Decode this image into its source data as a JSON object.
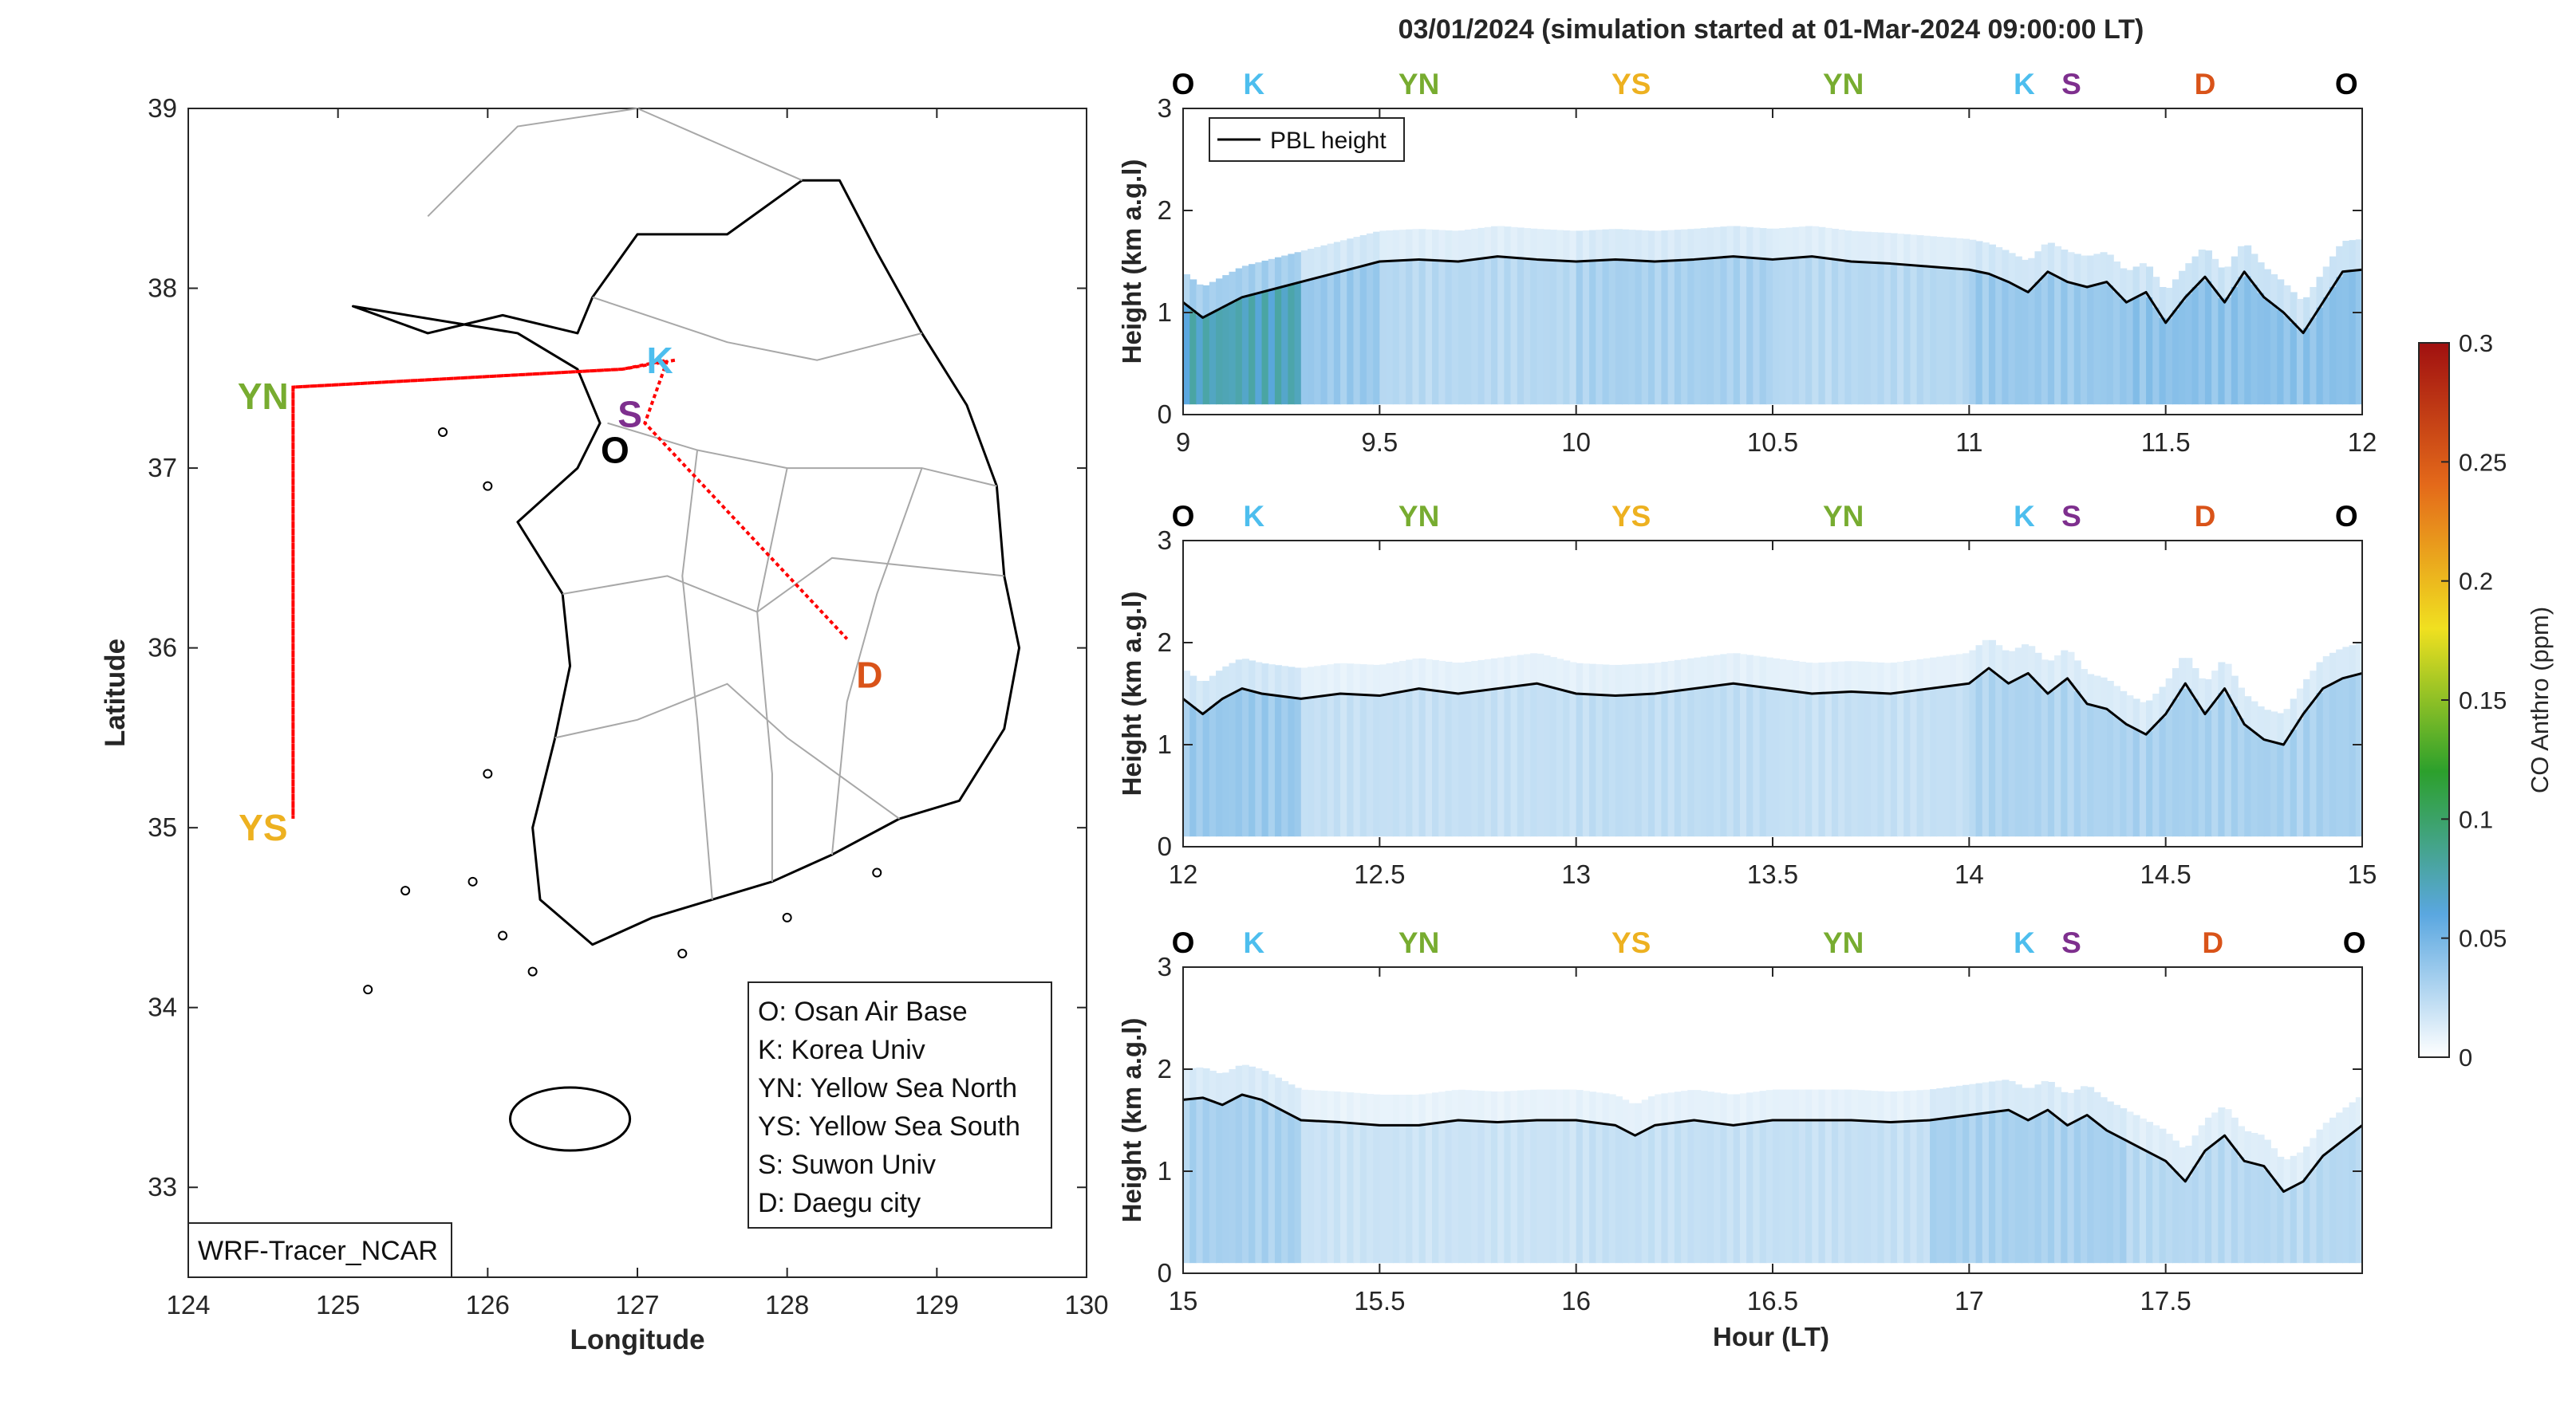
{
  "figure": {
    "title": "03/01/2024 (simulation started at 01-Mar-2024 09:00:00 LT)",
    "watermark": "WRF-Tracer_NCAR"
  },
  "map": {
    "xlabel": "Longitude",
    "ylabel": "Latitude",
    "xlim": [
      124,
      130
    ],
    "ylim": [
      32.5,
      39
    ],
    "xticks": [
      "124",
      "125",
      "126",
      "127",
      "128",
      "129",
      "130"
    ],
    "yticks": [
      "33",
      "34",
      "35",
      "36",
      "37",
      "38",
      "39"
    ],
    "sites": [
      {
        "code": "K",
        "lon": 127.15,
        "lat": 37.6,
        "color": "#4DBEEE"
      },
      {
        "code": "S",
        "lon": 126.95,
        "lat": 37.3,
        "color": "#7E2F8E"
      },
      {
        "code": "O",
        "lon": 126.85,
        "lat": 37.1,
        "color": "#000000"
      },
      {
        "code": "YN",
        "lon": 124.5,
        "lat": 37.4,
        "color": "#77AC30"
      },
      {
        "code": "YS",
        "lon": 124.5,
        "lat": 35.0,
        "color": "#EDB120"
      },
      {
        "code": "D",
        "lon": 128.55,
        "lat": 35.85,
        "color": "#D95319"
      }
    ],
    "legend": [
      "O: Osan Air Base",
      "K: Korea Univ",
      "YN: Yellow Sea North",
      "YS: Yellow Sea South",
      "S: Suwon Univ",
      "D: Daegu city"
    ],
    "track_color": "#ff0000",
    "track": [
      [
        127.25,
        37.6
      ],
      [
        126.9,
        37.55
      ],
      [
        124.7,
        37.45
      ],
      [
        124.7,
        35.05
      ],
      [
        124.7,
        37.45
      ],
      [
        126.9,
        37.55
      ],
      [
        127.2,
        37.6
      ],
      [
        127.05,
        37.25
      ],
      [
        128.4,
        36.05
      ]
    ]
  },
  "chart_data": {
    "type": "heatmap",
    "title": "03/01/2024 (simulation started at 01-Mar-2024 09:00:00 LT)",
    "xlabel": "Hour (LT)",
    "ylabel": "Height (km a.g.l)",
    "ylim": [
      0,
      3
    ],
    "yticks": [
      "0",
      "1",
      "2",
      "3"
    ],
    "colorbar": {
      "label": "CO Anthro (ppm)",
      "range": [
        0,
        0.3
      ],
      "ticks": [
        "0",
        "0.05",
        "0.1",
        "0.15",
        "0.2",
        "0.25",
        "0.3"
      ],
      "colormap": [
        "#ffffff",
        "#5aa7e0",
        "#2ca02c",
        "#f0e020",
        "#e46a1a",
        "#a01010"
      ]
    },
    "legend": [
      "PBL height"
    ],
    "panels": [
      {
        "xlim": [
          9,
          12
        ],
        "xticks": [
          "9",
          "9.5",
          "10",
          "10.5",
          "11",
          "11.5",
          "12"
        ],
        "site_labels": [
          {
            "code": "O",
            "x": 9.0,
            "color": "#000000"
          },
          {
            "code": "K",
            "x": 9.18,
            "color": "#4DBEEE"
          },
          {
            "code": "YN",
            "x": 9.6,
            "color": "#77AC30"
          },
          {
            "code": "YS",
            "x": 10.14,
            "color": "#EDB120"
          },
          {
            "code": "YN",
            "x": 10.68,
            "color": "#77AC30"
          },
          {
            "code": "K",
            "x": 11.14,
            "color": "#4DBEEE"
          },
          {
            "code": "S",
            "x": 11.26,
            "color": "#7E2F8E"
          },
          {
            "code": "D",
            "x": 11.6,
            "color": "#D95319"
          },
          {
            "code": "O",
            "x": 11.96,
            "color": "#000000"
          }
        ],
        "pbl": {
          "x": [
            9.0,
            9.05,
            9.1,
            9.15,
            9.2,
            9.25,
            9.3,
            9.35,
            9.4,
            9.45,
            9.5,
            9.6,
            9.7,
            9.8,
            9.9,
            10.0,
            10.1,
            10.2,
            10.3,
            10.4,
            10.5,
            10.6,
            10.7,
            10.8,
            10.9,
            11.0,
            11.05,
            11.1,
            11.15,
            11.2,
            11.25,
            11.3,
            11.35,
            11.4,
            11.45,
            11.5,
            11.55,
            11.6,
            11.65,
            11.7,
            11.75,
            11.8,
            11.85,
            11.9,
            11.95,
            12.0
          ],
          "y": [
            1.1,
            0.95,
            1.05,
            1.15,
            1.2,
            1.25,
            1.3,
            1.35,
            1.4,
            1.45,
            1.5,
            1.52,
            1.5,
            1.55,
            1.52,
            1.5,
            1.52,
            1.5,
            1.52,
            1.55,
            1.52,
            1.55,
            1.5,
            1.48,
            1.45,
            1.42,
            1.38,
            1.3,
            1.2,
            1.4,
            1.3,
            1.25,
            1.3,
            1.1,
            1.2,
            0.9,
            1.15,
            1.35,
            1.1,
            1.4,
            1.15,
            1.0,
            0.8,
            1.1,
            1.4,
            1.42
          ]
        },
        "intensity": [
          {
            "x": [
              9.0,
              9.3
            ],
            "v": 0.07
          },
          {
            "x": [
              9.3,
              9.5
            ],
            "v": 0.035
          },
          {
            "x": [
              9.5,
              10.0
            ],
            "v": 0.025
          },
          {
            "x": [
              10.0,
              10.5
            ],
            "v": 0.03
          },
          {
            "x": [
              10.5,
              11.0
            ],
            "v": 0.025
          },
          {
            "x": [
              11.0,
              11.4
            ],
            "v": 0.035
          },
          {
            "x": [
              11.4,
              12.0
            ],
            "v": 0.04
          }
        ]
      },
      {
        "xlim": [
          12,
          15
        ],
        "xticks": [
          "12",
          "12.5",
          "13",
          "13.5",
          "14",
          "14.5",
          "15"
        ],
        "site_labels": [
          {
            "code": "O",
            "x": 12.0,
            "color": "#000000"
          },
          {
            "code": "K",
            "x": 12.18,
            "color": "#4DBEEE"
          },
          {
            "code": "YN",
            "x": 12.6,
            "color": "#77AC30"
          },
          {
            "code": "YS",
            "x": 13.14,
            "color": "#EDB120"
          },
          {
            "code": "YN",
            "x": 13.68,
            "color": "#77AC30"
          },
          {
            "code": "K",
            "x": 14.14,
            "color": "#4DBEEE"
          },
          {
            "code": "S",
            "x": 14.26,
            "color": "#7E2F8E"
          },
          {
            "code": "D",
            "x": 14.6,
            "color": "#D95319"
          },
          {
            "code": "O",
            "x": 14.96,
            "color": "#000000"
          }
        ],
        "pbl": {
          "x": [
            12.0,
            12.05,
            12.1,
            12.15,
            12.2,
            12.3,
            12.4,
            12.5,
            12.6,
            12.7,
            12.8,
            12.9,
            13.0,
            13.1,
            13.2,
            13.3,
            13.4,
            13.5,
            13.6,
            13.7,
            13.8,
            13.9,
            14.0,
            14.05,
            14.1,
            14.15,
            14.2,
            14.25,
            14.3,
            14.35,
            14.4,
            14.45,
            14.5,
            14.55,
            14.6,
            14.65,
            14.7,
            14.75,
            14.8,
            14.85,
            14.9,
            14.95,
            15.0
          ],
          "y": [
            1.45,
            1.3,
            1.45,
            1.55,
            1.5,
            1.45,
            1.5,
            1.48,
            1.55,
            1.5,
            1.55,
            1.6,
            1.5,
            1.48,
            1.5,
            1.55,
            1.6,
            1.55,
            1.5,
            1.52,
            1.5,
            1.55,
            1.6,
            1.75,
            1.6,
            1.7,
            1.5,
            1.65,
            1.4,
            1.35,
            1.2,
            1.1,
            1.3,
            1.6,
            1.3,
            1.55,
            1.2,
            1.05,
            1.0,
            1.3,
            1.55,
            1.65,
            1.7
          ]
        },
        "intensity": [
          {
            "x": [
              12.0,
              12.3
            ],
            "v": 0.035
          },
          {
            "x": [
              12.3,
              13.0
            ],
            "v": 0.02
          },
          {
            "x": [
              13.0,
              13.5
            ],
            "v": 0.022
          },
          {
            "x": [
              13.5,
              14.0
            ],
            "v": 0.02
          },
          {
            "x": [
              14.0,
              14.4
            ],
            "v": 0.028
          },
          {
            "x": [
              14.4,
              15.0
            ],
            "v": 0.03
          }
        ]
      },
      {
        "xlim": [
          15,
          18
        ],
        "xticks": [
          "15",
          "15.5",
          "16",
          "16.5",
          "17",
          "17.5"
        ],
        "site_labels": [
          {
            "code": "O",
            "x": 15.0,
            "color": "#000000"
          },
          {
            "code": "K",
            "x": 15.18,
            "color": "#4DBEEE"
          },
          {
            "code": "YN",
            "x": 15.6,
            "color": "#77AC30"
          },
          {
            "code": "YS",
            "x": 16.14,
            "color": "#EDB120"
          },
          {
            "code": "YN",
            "x": 16.68,
            "color": "#77AC30"
          },
          {
            "code": "K",
            "x": 17.14,
            "color": "#4DBEEE"
          },
          {
            "code": "S",
            "x": 17.26,
            "color": "#7E2F8E"
          },
          {
            "code": "D",
            "x": 17.62,
            "color": "#D95319"
          },
          {
            "code": "O",
            "x": 17.98,
            "color": "#000000"
          }
        ],
        "pbl": {
          "x": [
            15.0,
            15.05,
            15.1,
            15.15,
            15.2,
            15.25,
            15.3,
            15.4,
            15.5,
            15.6,
            15.7,
            15.8,
            15.9,
            16.0,
            16.1,
            16.15,
            16.2,
            16.3,
            16.4,
            16.5,
            16.6,
            16.7,
            16.8,
            16.9,
            17.0,
            17.1,
            17.15,
            17.2,
            17.25,
            17.3,
            17.35,
            17.4,
            17.45,
            17.5,
            17.55,
            17.6,
            17.65,
            17.7,
            17.75,
            17.8,
            17.85,
            17.9,
            17.95,
            18.0
          ],
          "y": [
            1.7,
            1.72,
            1.65,
            1.75,
            1.7,
            1.6,
            1.5,
            1.48,
            1.45,
            1.45,
            1.5,
            1.48,
            1.5,
            1.5,
            1.45,
            1.35,
            1.45,
            1.5,
            1.45,
            1.5,
            1.5,
            1.5,
            1.48,
            1.5,
            1.55,
            1.6,
            1.5,
            1.6,
            1.45,
            1.55,
            1.4,
            1.3,
            1.2,
            1.1,
            0.9,
            1.2,
            1.35,
            1.1,
            1.05,
            0.8,
            0.9,
            1.15,
            1.3,
            1.45
          ]
        },
        "intensity": [
          {
            "x": [
              15.0,
              15.3
            ],
            "v": 0.03
          },
          {
            "x": [
              15.3,
              16.0
            ],
            "v": 0.018
          },
          {
            "x": [
              16.0,
              16.5
            ],
            "v": 0.02
          },
          {
            "x": [
              16.5,
              16.9
            ],
            "v": 0.02
          },
          {
            "x": [
              16.9,
              17.4
            ],
            "v": 0.03
          },
          {
            "x": [
              17.4,
              18.0
            ],
            "v": 0.025
          }
        ]
      }
    ]
  }
}
